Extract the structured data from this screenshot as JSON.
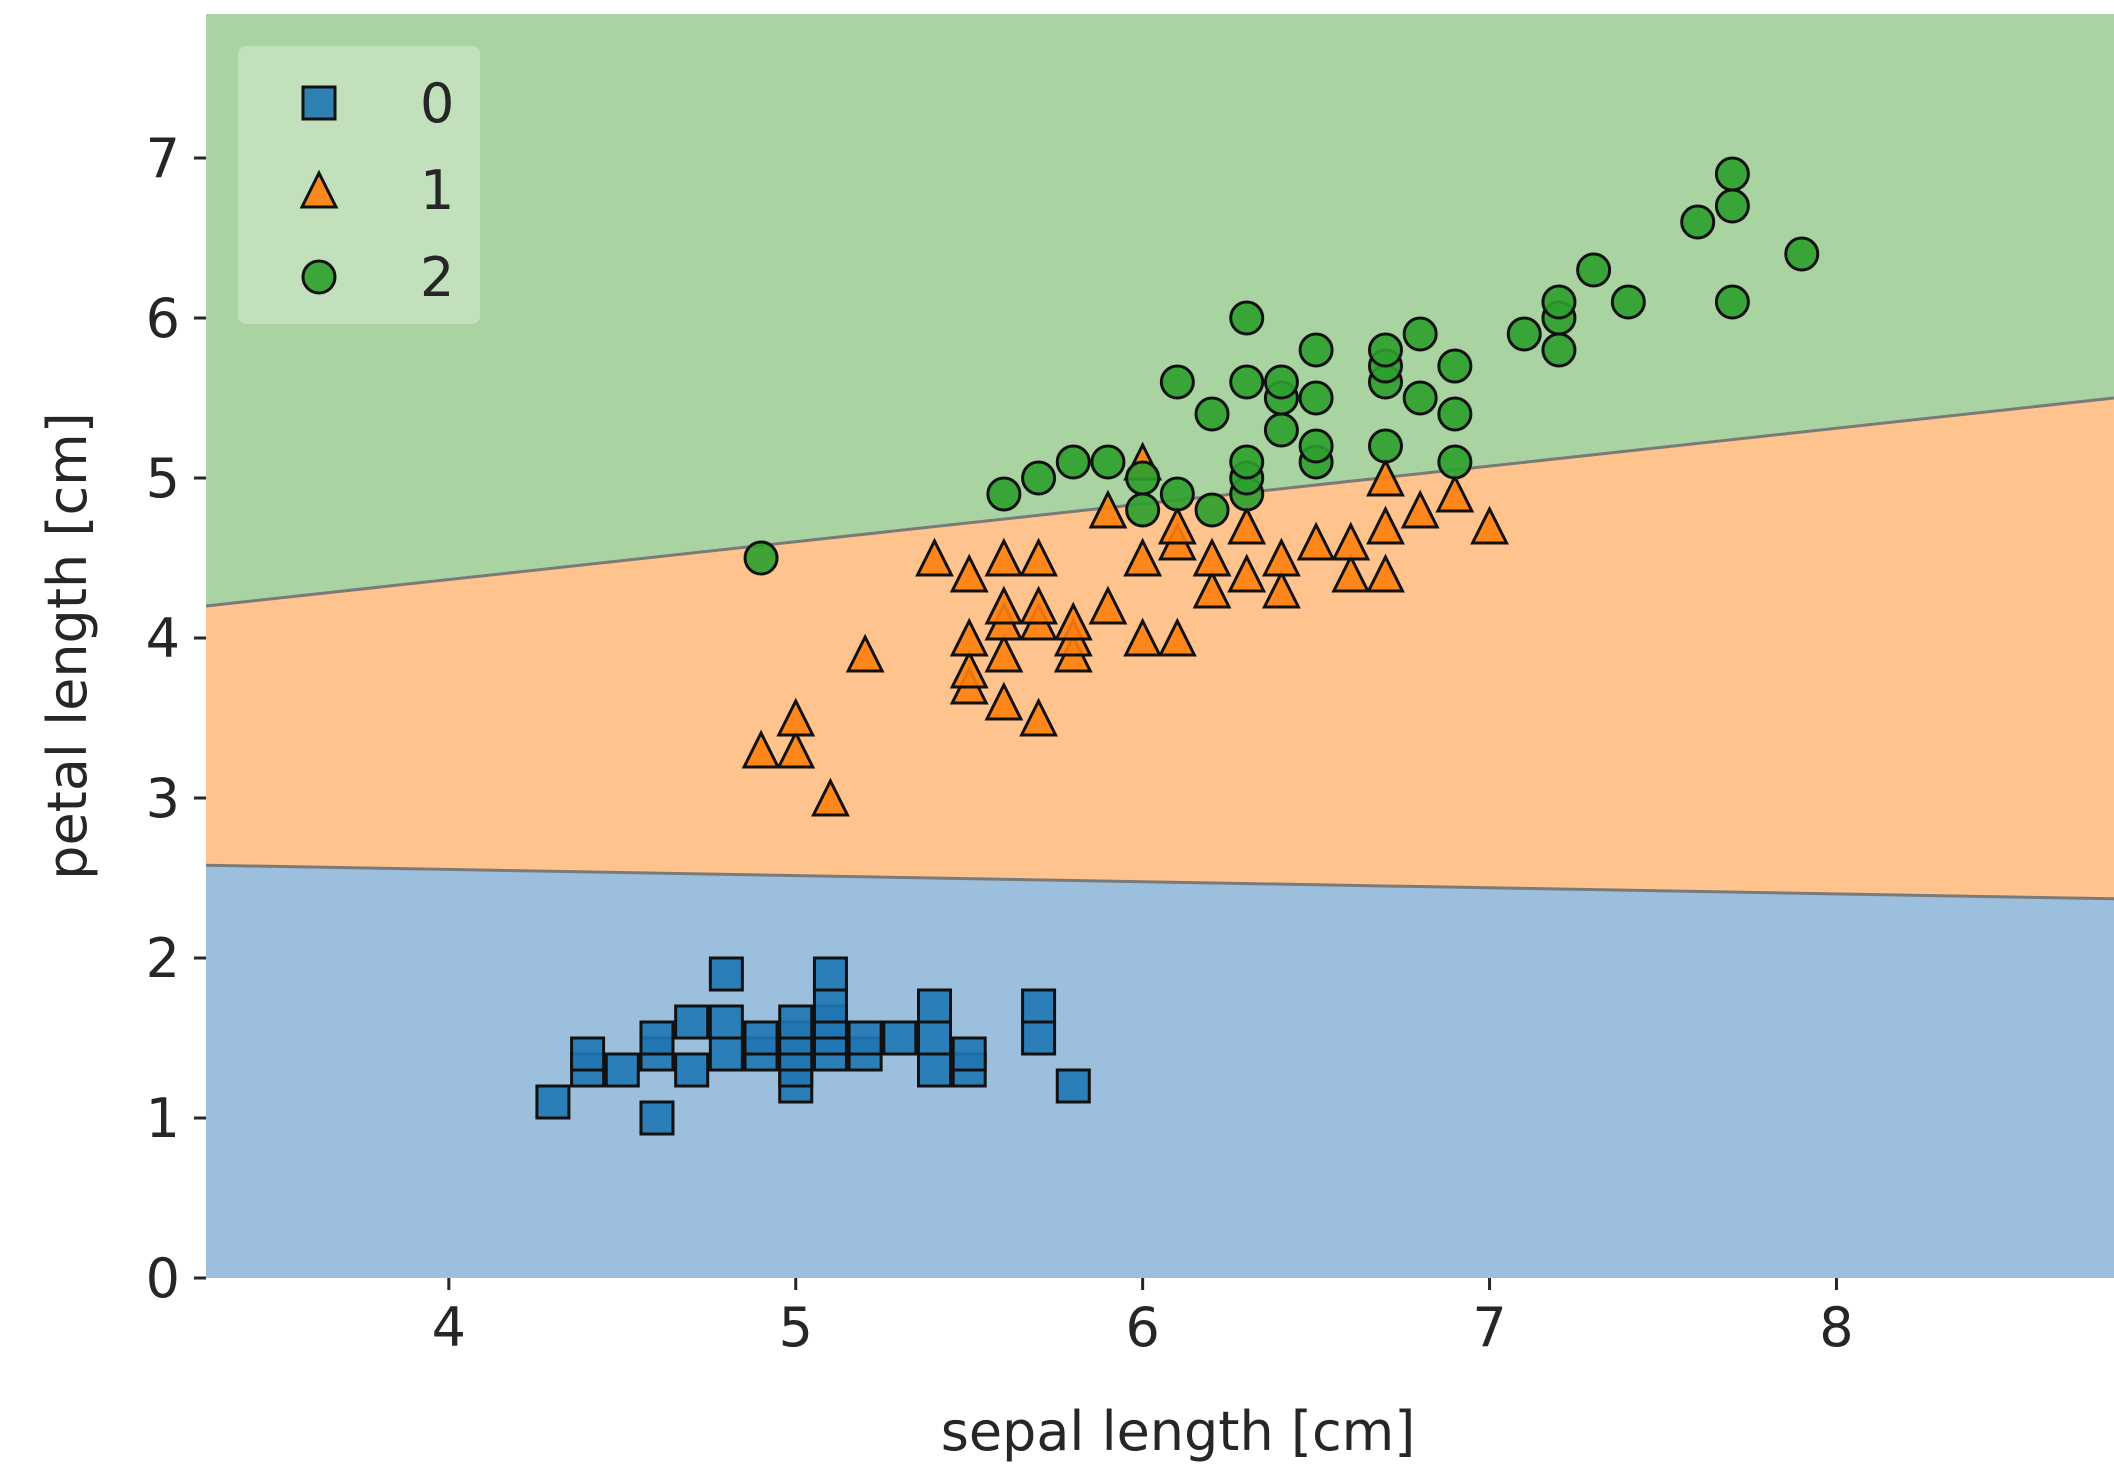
{
  "chart_data": {
    "type": "scatter",
    "title": "",
    "xlabel": "sepal length [cm]",
    "ylabel": "petal length [cm]",
    "xlim": [
      3.3,
      8.8
    ],
    "ylim": [
      0,
      7.9
    ],
    "xticks": [
      4,
      5,
      6,
      7,
      8
    ],
    "yticks": [
      0,
      1,
      2,
      3,
      4,
      5,
      6,
      7
    ],
    "grid": false,
    "legend_position": "top-left",
    "decision_regions": [
      {
        "class": "0",
        "color": "#9bbfdc",
        "y_boundary_at_xmin": 2.58,
        "y_boundary_at_xmax": 2.37
      },
      {
        "class": "1",
        "color": "#ffc48e",
        "y_boundary_at_xmin": 4.2,
        "y_boundary_at_xmax": 5.5
      },
      {
        "class": "2",
        "color": "#a9d3a1"
      }
    ],
    "series": [
      {
        "name": "0",
        "marker": "square",
        "color": "#1f77b4",
        "points": [
          [
            4.3,
            1.1
          ],
          [
            4.4,
            1.3
          ],
          [
            4.4,
            1.4
          ],
          [
            4.5,
            1.3
          ],
          [
            4.6,
            1.0
          ],
          [
            4.6,
            1.4
          ],
          [
            4.6,
            1.5
          ],
          [
            4.7,
            1.3
          ],
          [
            4.7,
            1.6
          ],
          [
            4.8,
            1.4
          ],
          [
            4.8,
            1.6
          ],
          [
            4.8,
            1.9
          ],
          [
            4.9,
            1.4
          ],
          [
            4.9,
            1.5
          ],
          [
            5.0,
            1.2
          ],
          [
            5.0,
            1.3
          ],
          [
            5.0,
            1.4
          ],
          [
            5.0,
            1.5
          ],
          [
            5.0,
            1.6
          ],
          [
            5.1,
            1.4
          ],
          [
            5.1,
            1.5
          ],
          [
            5.1,
            1.6
          ],
          [
            5.1,
            1.7
          ],
          [
            5.1,
            1.9
          ],
          [
            5.2,
            1.4
          ],
          [
            5.2,
            1.5
          ],
          [
            5.3,
            1.5
          ],
          [
            5.4,
            1.3
          ],
          [
            5.4,
            1.5
          ],
          [
            5.4,
            1.7
          ],
          [
            5.5,
            1.3
          ],
          [
            5.5,
            1.4
          ],
          [
            5.7,
            1.5
          ],
          [
            5.7,
            1.7
          ],
          [
            5.8,
            1.2
          ]
        ]
      },
      {
        "name": "1",
        "marker": "triangle",
        "color": "#ff7f0e",
        "points": [
          [
            4.9,
            3.3
          ],
          [
            5.0,
            3.3
          ],
          [
            5.0,
            3.5
          ],
          [
            5.1,
            3.0
          ],
          [
            5.2,
            3.9
          ],
          [
            5.4,
            4.5
          ],
          [
            5.5,
            3.7
          ],
          [
            5.5,
            3.8
          ],
          [
            5.5,
            4.0
          ],
          [
            5.5,
            4.4
          ],
          [
            5.6,
            3.6
          ],
          [
            5.6,
            3.9
          ],
          [
            5.6,
            4.1
          ],
          [
            5.6,
            4.2
          ],
          [
            5.6,
            4.5
          ],
          [
            5.7,
            3.5
          ],
          [
            5.7,
            4.1
          ],
          [
            5.7,
            4.2
          ],
          [
            5.7,
            4.5
          ],
          [
            5.8,
            3.9
          ],
          [
            5.8,
            4.0
          ],
          [
            5.8,
            4.1
          ],
          [
            5.9,
            4.2
          ],
          [
            5.9,
            4.8
          ],
          [
            6.0,
            4.0
          ],
          [
            6.0,
            4.5
          ],
          [
            6.0,
            5.1
          ],
          [
            6.1,
            4.0
          ],
          [
            6.1,
            4.6
          ],
          [
            6.1,
            4.7
          ],
          [
            6.2,
            4.3
          ],
          [
            6.2,
            4.5
          ],
          [
            6.3,
            4.4
          ],
          [
            6.3,
            4.7
          ],
          [
            6.4,
            4.3
          ],
          [
            6.4,
            4.5
          ],
          [
            6.5,
            4.6
          ],
          [
            6.6,
            4.4
          ],
          [
            6.6,
            4.6
          ],
          [
            6.7,
            4.4
          ],
          [
            6.7,
            4.7
          ],
          [
            6.7,
            5.0
          ],
          [
            6.8,
            4.8
          ],
          [
            6.9,
            4.9
          ],
          [
            7.0,
            4.7
          ]
        ]
      },
      {
        "name": "2",
        "marker": "circle",
        "color": "#2ca02c",
        "points": [
          [
            4.9,
            4.5
          ],
          [
            5.6,
            4.9
          ],
          [
            5.7,
            5.0
          ],
          [
            5.8,
            5.1
          ],
          [
            5.9,
            5.1
          ],
          [
            6.0,
            4.8
          ],
          [
            6.0,
            5.0
          ],
          [
            6.1,
            4.9
          ],
          [
            6.1,
            5.6
          ],
          [
            6.2,
            4.8
          ],
          [
            6.2,
            5.4
          ],
          [
            6.3,
            4.9
          ],
          [
            6.3,
            5.0
          ],
          [
            6.3,
            5.1
          ],
          [
            6.3,
            5.6
          ],
          [
            6.3,
            6.0
          ],
          [
            6.4,
            5.3
          ],
          [
            6.4,
            5.5
          ],
          [
            6.4,
            5.6
          ],
          [
            6.5,
            5.1
          ],
          [
            6.5,
            5.2
          ],
          [
            6.5,
            5.5
          ],
          [
            6.5,
            5.8
          ],
          [
            6.7,
            5.2
          ],
          [
            6.7,
            5.6
          ],
          [
            6.7,
            5.7
          ],
          [
            6.7,
            5.8
          ],
          [
            6.8,
            5.5
          ],
          [
            6.8,
            5.9
          ],
          [
            6.9,
            5.1
          ],
          [
            6.9,
            5.4
          ],
          [
            6.9,
            5.7
          ],
          [
            7.1,
            5.9
          ],
          [
            7.2,
            5.8
          ],
          [
            7.2,
            6.0
          ],
          [
            7.2,
            6.1
          ],
          [
            7.3,
            6.3
          ],
          [
            7.4,
            6.1
          ],
          [
            7.6,
            6.6
          ],
          [
            7.7,
            6.1
          ],
          [
            7.7,
            6.7
          ],
          [
            7.7,
            6.9
          ],
          [
            7.9,
            6.4
          ]
        ]
      }
    ]
  }
}
